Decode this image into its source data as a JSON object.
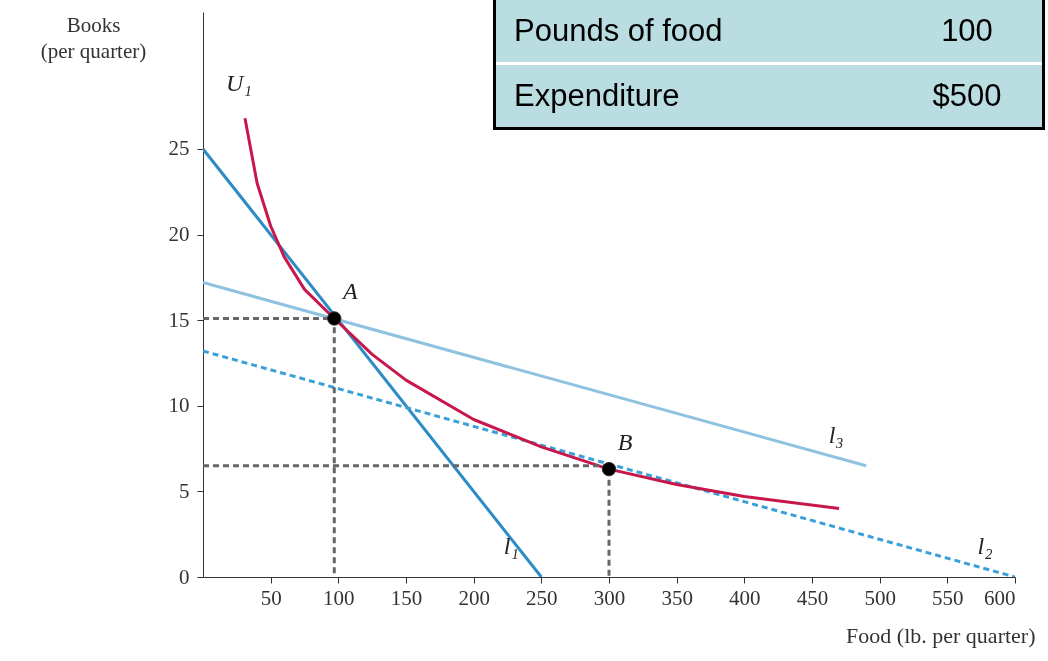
{
  "chart_data": {
    "type": "line",
    "xlabel": "Food (lb. per quarter)",
    "ylabel": "Books\n(per quarter)",
    "xlim": [
      0,
      600
    ],
    "ylim": [
      0,
      33
    ],
    "xticks": [
      50,
      100,
      150,
      200,
      250,
      300,
      350,
      400,
      450,
      500,
      550,
      600
    ],
    "yticks": [
      0,
      5,
      10,
      15,
      20,
      25
    ],
    "grid": false,
    "series": [
      {
        "name": "l₁",
        "color": "#2a8bc6",
        "line_style": "solid",
        "x": [
          0,
          250
        ],
        "values": [
          25,
          0
        ]
      },
      {
        "name": "l₃",
        "color": "#8fc1e0",
        "line_style": "solid",
        "x": [
          0,
          490
        ],
        "values": [
          17.2,
          6.5
        ]
      },
      {
        "name": "l₂",
        "color": "#3aa0d8",
        "line_style": "dashed",
        "x": [
          0,
          600
        ],
        "values": [
          13.2,
          0
        ]
      },
      {
        "name": "U₁",
        "color": "#c8174a",
        "line_style": "solid",
        "x": [
          31,
          40,
          50,
          60,
          75,
          97,
          125,
          150,
          200,
          250,
          300,
          350,
          400,
          470
        ],
        "values": [
          26.8,
          23,
          20.5,
          18.7,
          16.8,
          15.1,
          13,
          11.5,
          9.2,
          7.6,
          6.3,
          5.4,
          4.7,
          4
        ]
      },
      {
        "color": "#666666",
        "line_style": "dashed",
        "x": [
          0,
          97,
          97
        ],
        "values": [
          15.1,
          15.1,
          0
        ]
      },
      {
        "color": "#666666",
        "line_style": "dashed",
        "x": [
          0,
          300,
          300
        ],
        "values": [
          6.5,
          6.5,
          0
        ]
      },
      {
        "name": "A",
        "type": "scatter",
        "color": "#000000",
        "marker": "circle",
        "x": [
          97
        ],
        "values": [
          15.1
        ]
      },
      {
        "name": "B",
        "type": "scatter",
        "color": "#000000",
        "marker": "circle",
        "x": [
          300
        ],
        "values": [
          6.3
        ]
      }
    ],
    "annotations": [
      "Pounds of food",
      "100",
      "Expenditure",
      "$500"
    ]
  }
}
